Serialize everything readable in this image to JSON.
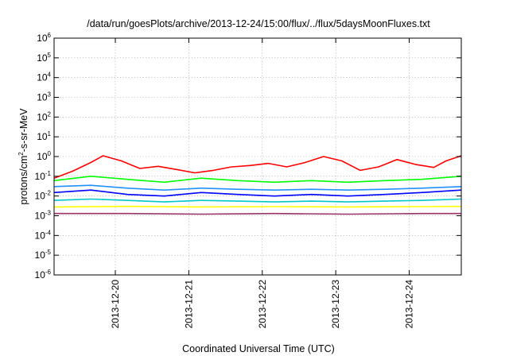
{
  "chart_data": {
    "type": "line",
    "title": "/data/run/goesPlots/archive/2013-12-24/15:00/flux/../flux/5daysMoonFluxes.txt",
    "xlabel": "Coordinated Universal Time (UTC)",
    "ylabel": {
      "pre": "protons/cm",
      "sup": "2",
      "post": "-s-sr-MeV"
    },
    "y_scale": "log",
    "ylim": [
      1e-06,
      1000000.0
    ],
    "xlim": [
      "2013-12-19 04:00",
      "2013-12-24 17:00"
    ],
    "grid": true,
    "y_ticks": [
      {
        "value": 1e-06,
        "base": "10",
        "exp": "-6"
      },
      {
        "value": 1e-05,
        "base": "10",
        "exp": "-5"
      },
      {
        "value": 0.0001,
        "base": "10",
        "exp": "-4"
      },
      {
        "value": 0.001,
        "base": "10",
        "exp": "-3"
      },
      {
        "value": 0.01,
        "base": "10",
        "exp": "-2"
      },
      {
        "value": 0.1,
        "base": "10",
        "exp": "-1"
      },
      {
        "value": 1.0,
        "base": "10",
        "exp": "0"
      },
      {
        "value": 10.0,
        "base": "10",
        "exp": "1"
      },
      {
        "value": 100.0,
        "base": "10",
        "exp": "2"
      },
      {
        "value": 1000.0,
        "base": "10",
        "exp": "3"
      },
      {
        "value": 10000.0,
        "base": "10",
        "exp": "4"
      },
      {
        "value": 100000.0,
        "base": "10",
        "exp": "5"
      },
      {
        "value": 1000000.0,
        "base": "10",
        "exp": "6"
      }
    ],
    "x_ticks": [
      "2013-12-20",
      "2013-12-21",
      "2013-12-22",
      "2013-12-23",
      "2013-12-24"
    ],
    "series": [
      {
        "color": "#ff0000",
        "values": [
          {
            "x": "2013-12-19 04:00",
            "y": 0.08
          },
          {
            "x": "2013-12-19 10:00",
            "y": 0.18
          },
          {
            "x": "2013-12-19 16:00",
            "y": 0.5
          },
          {
            "x": "2013-12-19 20:00",
            "y": 1.1
          },
          {
            "x": "2013-12-20 02:00",
            "y": 0.6
          },
          {
            "x": "2013-12-20 08:00",
            "y": 0.25
          },
          {
            "x": "2013-12-20 14:00",
            "y": 0.32
          },
          {
            "x": "2013-12-20 20:00",
            "y": 0.22
          },
          {
            "x": "2013-12-21 02:00",
            "y": 0.15
          },
          {
            "x": "2013-12-21 08:00",
            "y": 0.2
          },
          {
            "x": "2013-12-21 14:00",
            "y": 0.3
          },
          {
            "x": "2013-12-21 20:00",
            "y": 0.35
          },
          {
            "x": "2013-12-22 02:00",
            "y": 0.45
          },
          {
            "x": "2013-12-22 08:00",
            "y": 0.3
          },
          {
            "x": "2013-12-22 14:00",
            "y": 0.5
          },
          {
            "x": "2013-12-22 20:00",
            "y": 1.0
          },
          {
            "x": "2013-12-23 02:00",
            "y": 0.6
          },
          {
            "x": "2013-12-23 08:00",
            "y": 0.2
          },
          {
            "x": "2013-12-23 14:00",
            "y": 0.3
          },
          {
            "x": "2013-12-23 20:00",
            "y": 0.7
          },
          {
            "x": "2013-12-24 02:00",
            "y": 0.4
          },
          {
            "x": "2013-12-24 08:00",
            "y": 0.28
          },
          {
            "x": "2013-12-24 12:00",
            "y": 0.6
          },
          {
            "x": "2013-12-24 17:00",
            "y": 1.1
          }
        ]
      },
      {
        "color": "#00ff00",
        "values": [
          {
            "x": "2013-12-19 04:00",
            "y": 0.06
          },
          {
            "x": "2013-12-19 16:00",
            "y": 0.1
          },
          {
            "x": "2013-12-20 04:00",
            "y": 0.07
          },
          {
            "x": "2013-12-20 16:00",
            "y": 0.05
          },
          {
            "x": "2013-12-21 04:00",
            "y": 0.08
          },
          {
            "x": "2013-12-21 16:00",
            "y": 0.06
          },
          {
            "x": "2013-12-22 04:00",
            "y": 0.05
          },
          {
            "x": "2013-12-22 16:00",
            "y": 0.06
          },
          {
            "x": "2013-12-23 04:00",
            "y": 0.05
          },
          {
            "x": "2013-12-23 16:00",
            "y": 0.06
          },
          {
            "x": "2013-12-24 04:00",
            "y": 0.07
          },
          {
            "x": "2013-12-24 17:00",
            "y": 0.1
          }
        ]
      },
      {
        "color": "#0000ff",
        "values": [
          {
            "x": "2013-12-19 04:00",
            "y": 0.015
          },
          {
            "x": "2013-12-19 16:00",
            "y": 0.02
          },
          {
            "x": "2013-12-20 04:00",
            "y": 0.012
          },
          {
            "x": "2013-12-20 16:00",
            "y": 0.01
          },
          {
            "x": "2013-12-21 04:00",
            "y": 0.015
          },
          {
            "x": "2013-12-21 16:00",
            "y": 0.012
          },
          {
            "x": "2013-12-22 04:00",
            "y": 0.01
          },
          {
            "x": "2013-12-22 16:00",
            "y": 0.012
          },
          {
            "x": "2013-12-23 04:00",
            "y": 0.01
          },
          {
            "x": "2013-12-23 16:00",
            "y": 0.012
          },
          {
            "x": "2013-12-24 04:00",
            "y": 0.015
          },
          {
            "x": "2013-12-24 17:00",
            "y": 0.02
          }
        ]
      },
      {
        "color": "#1e90ff",
        "values": [
          {
            "x": "2013-12-19 04:00",
            "y": 0.03
          },
          {
            "x": "2013-12-19 16:00",
            "y": 0.035
          },
          {
            "x": "2013-12-20 04:00",
            "y": 0.025
          },
          {
            "x": "2013-12-20 16:00",
            "y": 0.02
          },
          {
            "x": "2013-12-21 04:00",
            "y": 0.025
          },
          {
            "x": "2013-12-21 16:00",
            "y": 0.022
          },
          {
            "x": "2013-12-22 04:00",
            "y": 0.02
          },
          {
            "x": "2013-12-22 16:00",
            "y": 0.022
          },
          {
            "x": "2013-12-23 04:00",
            "y": 0.02
          },
          {
            "x": "2013-12-23 16:00",
            "y": 0.022
          },
          {
            "x": "2013-12-24 04:00",
            "y": 0.025
          },
          {
            "x": "2013-12-24 17:00",
            "y": 0.03
          }
        ]
      },
      {
        "color": "#00c8c8",
        "values": [
          {
            "x": "2013-12-19 04:00",
            "y": 0.006
          },
          {
            "x": "2013-12-19 16:00",
            "y": 0.007
          },
          {
            "x": "2013-12-20 04:00",
            "y": 0.006
          },
          {
            "x": "2013-12-20 16:00",
            "y": 0.005
          },
          {
            "x": "2013-12-21 04:00",
            "y": 0.006
          },
          {
            "x": "2013-12-21 16:00",
            "y": 0.0055
          },
          {
            "x": "2013-12-22 04:00",
            "y": 0.005
          },
          {
            "x": "2013-12-22 16:00",
            "y": 0.0055
          },
          {
            "x": "2013-12-23 04:00",
            "y": 0.005
          },
          {
            "x": "2013-12-23 16:00",
            "y": 0.0055
          },
          {
            "x": "2013-12-24 04:00",
            "y": 0.006
          },
          {
            "x": "2013-12-24 17:00",
            "y": 0.007
          }
        ]
      },
      {
        "color": "#ffff00",
        "values": [
          {
            "x": "2013-12-19 04:00",
            "y": 0.0028
          },
          {
            "x": "2013-12-20 04:00",
            "y": 0.003
          },
          {
            "x": "2013-12-21 04:00",
            "y": 0.0028
          },
          {
            "x": "2013-12-22 04:00",
            "y": 0.0029
          },
          {
            "x": "2013-12-23 04:00",
            "y": 0.0028
          },
          {
            "x": "2013-12-24 04:00",
            "y": 0.0029
          },
          {
            "x": "2013-12-24 17:00",
            "y": 0.003
          }
        ]
      },
      {
        "color": "#993366",
        "values": [
          {
            "x": "2013-12-19 04:00",
            "y": 0.0013
          },
          {
            "x": "2013-12-20 04:00",
            "y": 0.0013
          },
          {
            "x": "2013-12-21 04:00",
            "y": 0.0012
          },
          {
            "x": "2013-12-22 04:00",
            "y": 0.0013
          },
          {
            "x": "2013-12-23 04:00",
            "y": 0.0012
          },
          {
            "x": "2013-12-24 04:00",
            "y": 0.0013
          },
          {
            "x": "2013-12-24 17:00",
            "y": 0.0013
          }
        ]
      }
    ]
  }
}
